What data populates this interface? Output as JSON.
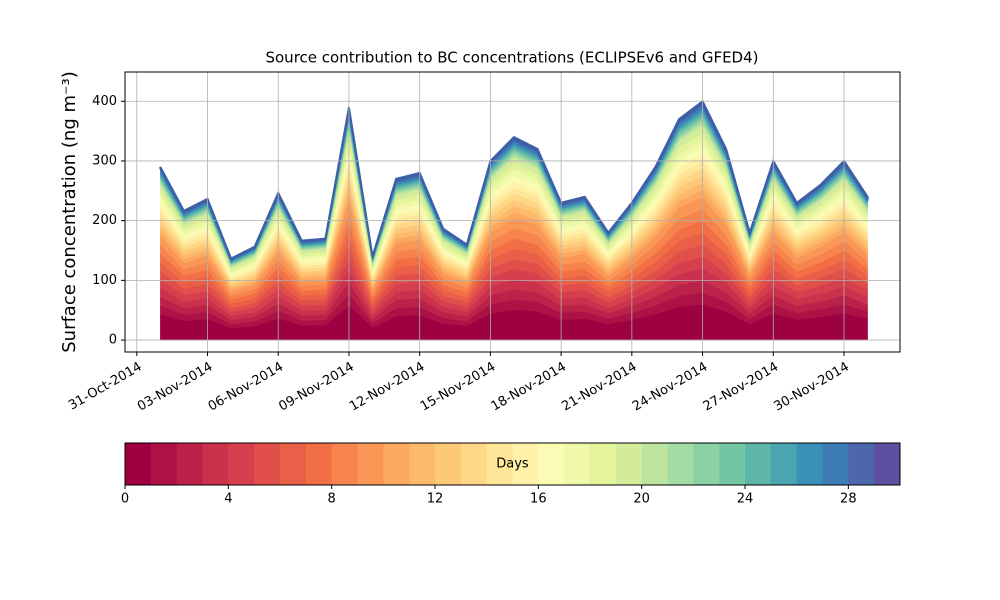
{
  "chart_data": {
    "type": "stacked_area",
    "title": "Source contribution to BC concentrations (ECLIPSEv6 and GFED4)",
    "ylabel": "Surface concentration (ng m⁻³)",
    "x": [
      "2014-11-01",
      "2014-11-02",
      "2014-11-03",
      "2014-11-04",
      "2014-11-05",
      "2014-11-06",
      "2014-11-07",
      "2014-11-08",
      "2014-11-09",
      "2014-11-10",
      "2014-11-11",
      "2014-11-12",
      "2014-11-13",
      "2014-11-14",
      "2014-11-15",
      "2014-11-16",
      "2014-11-17",
      "2014-11-18",
      "2014-11-19",
      "2014-11-20",
      "2014-11-21",
      "2014-11-22",
      "2014-11-23",
      "2014-11-24",
      "2014-11-25",
      "2014-11-26",
      "2014-11-27",
      "2014-11-28",
      "2014-11-29",
      "2014-11-30",
      "2014-12-01"
    ],
    "xlim": [
      "2014-10-30T12:00Z",
      "2014-12-02T09:00Z"
    ],
    "xticks": [
      {
        "value": "2014-10-31",
        "label": "31-Oct-2014"
      },
      {
        "value": "2014-11-03",
        "label": "03-Nov-2014"
      },
      {
        "value": "2014-11-06",
        "label": "06-Nov-2014"
      },
      {
        "value": "2014-11-09",
        "label": "09-Nov-2014"
      },
      {
        "value": "2014-11-12",
        "label": "12-Nov-2014"
      },
      {
        "value": "2014-11-15",
        "label": "15-Nov-2014"
      },
      {
        "value": "2014-11-18",
        "label": "18-Nov-2014"
      },
      {
        "value": "2014-11-21",
        "label": "21-Nov-2014"
      },
      {
        "value": "2014-11-24",
        "label": "24-Nov-2014"
      },
      {
        "value": "2014-11-27",
        "label": "27-Nov-2014"
      },
      {
        "value": "2014-11-30",
        "label": "30-Nov-2014"
      }
    ],
    "ylim": [
      -20,
      449
    ],
    "yticks": [
      0,
      100,
      200,
      300,
      400
    ],
    "grid": true,
    "colorbar": {
      "label": "Days",
      "lim": [
        0,
        30
      ],
      "ticks": [
        0,
        4,
        8,
        12,
        16,
        20,
        24,
        28
      ]
    },
    "series": [
      {
        "color": "#9e0142",
        "values": [
          43.5,
          32.3,
          35.3,
          20.3,
          23.3,
          36.8,
          24.8,
          25.5,
          58.5,
          21,
          40.5,
          42,
          27.8,
          24,
          45,
          51,
          48,
          34.5,
          36,
          27,
          34.5,
          43.5,
          55.5,
          60,
          48,
          27,
          45,
          34.5,
          39,
          45,
          36
        ]
      },
      {
        "color": "#ac1245",
        "values": [
          14.5,
          10.8,
          11.8,
          6.8,
          7.8,
          12.3,
          8.3,
          8.5,
          19.5,
          7,
          13.5,
          14,
          9.3,
          8,
          15,
          17,
          16,
          11.5,
          12,
          9,
          11.5,
          14.5,
          18.5,
          20,
          16,
          9,
          15,
          11.5,
          13,
          15,
          12
        ]
      },
      {
        "color": "#bb2249",
        "values": [
          14.5,
          10.8,
          11.8,
          6.8,
          7.8,
          12.3,
          8.3,
          8.5,
          19.5,
          7,
          13.5,
          14,
          9.3,
          8,
          15,
          17,
          16,
          11.5,
          12,
          9,
          11.5,
          14.5,
          18.5,
          20,
          16,
          9,
          15,
          11.5,
          13,
          15,
          12
        ]
      },
      {
        "color": "#c9314c",
        "values": [
          14.5,
          10.8,
          11.8,
          6.8,
          7.8,
          12.3,
          8.3,
          8.5,
          19.5,
          7,
          13.5,
          14,
          9.3,
          8,
          15,
          17,
          16,
          11.5,
          12,
          9,
          11.5,
          14.5,
          18.5,
          20,
          16,
          9,
          15,
          11.5,
          13,
          15,
          12
        ]
      },
      {
        "color": "#d6404e",
        "values": [
          14.5,
          10.8,
          11.8,
          6.8,
          7.8,
          12.3,
          8.3,
          8.5,
          19.5,
          7,
          13.5,
          14,
          9.3,
          8,
          15,
          17,
          16,
          11.5,
          12,
          9,
          11.5,
          14.5,
          18.5,
          20,
          16,
          9,
          15,
          11.5,
          13,
          15,
          12
        ]
      },
      {
        "color": "#e04f4a",
        "values": [
          14.5,
          10.8,
          11.8,
          6.8,
          7.8,
          12.3,
          8.3,
          8.5,
          19.5,
          7,
          13.5,
          14,
          9.3,
          8,
          15,
          17,
          16,
          11.5,
          12,
          9,
          11.5,
          14.5,
          18.5,
          20,
          16,
          9,
          15,
          11.5,
          13,
          15,
          12
        ]
      },
      {
        "color": "#e95f47",
        "values": [
          14.5,
          10.8,
          11.8,
          6.8,
          7.8,
          12.3,
          8.3,
          8.5,
          19.5,
          7,
          13.5,
          14,
          9.3,
          8,
          15,
          17,
          16,
          11.5,
          12,
          9,
          11.5,
          14.5,
          18.5,
          20,
          16,
          9,
          15,
          11.5,
          13,
          15,
          12
        ]
      },
      {
        "color": "#f26f45",
        "values": [
          14.5,
          10.8,
          11.8,
          6.8,
          7.8,
          12.3,
          8.3,
          8.5,
          19.5,
          7,
          13.5,
          14,
          9.3,
          8,
          15,
          17,
          16,
          11.5,
          12,
          9,
          11.5,
          14.5,
          18.5,
          20,
          16,
          9,
          15,
          11.5,
          13,
          15,
          12
        ]
      },
      {
        "color": "#f7834d",
        "values": [
          14.5,
          10.8,
          11.8,
          6.8,
          7.8,
          12.3,
          8.3,
          8.5,
          19.5,
          7,
          13.5,
          14,
          9.3,
          8,
          15,
          17,
          16,
          11.5,
          12,
          9,
          11.5,
          14.5,
          18.5,
          20,
          16,
          9,
          15,
          11.5,
          13,
          15,
          12
        ]
      },
      {
        "color": "#fa9656",
        "values": [
          14.5,
          10.8,
          11.8,
          6.8,
          7.8,
          12.3,
          8.3,
          8.5,
          19.5,
          7,
          13.5,
          14,
          9.3,
          8,
          15,
          17,
          16,
          11.5,
          12,
          9,
          11.5,
          14.5,
          18.5,
          20,
          16,
          9,
          15,
          11.5,
          13,
          15,
          12
        ]
      },
      {
        "color": "#fca85e",
        "values": [
          8.7,
          6.5,
          7.1,
          4.1,
          4.7,
          7.4,
          5,
          5.1,
          11.7,
          4.2,
          8.1,
          8.4,
          5.6,
          4.8,
          9,
          10.2,
          9.6,
          6.9,
          7.2,
          5.4,
          6.9,
          8.7,
          11.1,
          12,
          9.6,
          5.4,
          9,
          6.9,
          7.8,
          9,
          7.2
        ]
      },
      {
        "color": "#fdba6b",
        "values": [
          8.7,
          6.5,
          7.1,
          4.1,
          4.7,
          7.4,
          5,
          5.1,
          11.7,
          4.2,
          8.1,
          8.4,
          5.6,
          4.8,
          9,
          10.2,
          9.6,
          6.9,
          7.2,
          5.4,
          6.9,
          8.7,
          11.1,
          12,
          9.6,
          5.4,
          9,
          6.9,
          7.8,
          9,
          7.2
        ]
      },
      {
        "color": "#fdc979",
        "values": [
          8.7,
          6.5,
          7.1,
          4.1,
          4.7,
          7.4,
          5,
          5.1,
          11.7,
          4.2,
          8.1,
          8.4,
          5.6,
          4.8,
          9,
          10.2,
          9.6,
          6.9,
          7.2,
          5.4,
          6.9,
          8.7,
          11.1,
          12,
          9.6,
          5.4,
          9,
          6.9,
          7.8,
          9,
          7.2
        ]
      },
      {
        "color": "#fed787",
        "values": [
          8.7,
          6.5,
          7.1,
          4.1,
          4.7,
          7.4,
          5,
          5.1,
          11.7,
          4.2,
          8.1,
          8.4,
          5.6,
          4.8,
          9,
          10.2,
          9.6,
          6.9,
          7.2,
          5.4,
          6.9,
          8.7,
          11.1,
          12,
          9.6,
          5.4,
          9,
          6.9,
          7.8,
          9,
          7.2
        ]
      },
      {
        "color": "#fee597",
        "values": [
          8.7,
          6.5,
          7.1,
          4.1,
          4.7,
          7.4,
          5,
          5.1,
          11.7,
          4.2,
          8.1,
          8.4,
          5.6,
          4.8,
          9,
          10.2,
          9.6,
          6.9,
          7.2,
          5.4,
          6.9,
          8.7,
          11.1,
          12,
          9.6,
          5.4,
          9,
          6.9,
          7.8,
          9,
          7.2
        ]
      },
      {
        "color": "#fff1a8",
        "values": [
          8.7,
          6.5,
          7.1,
          4.1,
          4.7,
          7.4,
          5,
          5.1,
          11.7,
          4.2,
          8.1,
          8.4,
          5.6,
          4.8,
          9,
          10.2,
          9.6,
          6.9,
          7.2,
          5.4,
          6.9,
          8.7,
          11.1,
          12,
          9.6,
          5.4,
          9,
          6.9,
          7.8,
          9,
          7.2
        ]
      },
      {
        "color": "#fafcb5",
        "values": [
          8.7,
          6.5,
          7.1,
          4.1,
          4.7,
          7.4,
          5,
          5.1,
          11.7,
          4.2,
          8.1,
          8.4,
          5.6,
          4.8,
          9,
          10.2,
          9.6,
          6.9,
          7.2,
          5.4,
          6.9,
          8.7,
          11.1,
          12,
          9.6,
          5.4,
          9,
          6.9,
          7.8,
          9,
          7.2
        ]
      },
      {
        "color": "#f0f9a7",
        "values": [
          8.7,
          6.5,
          7.1,
          4.1,
          4.7,
          7.4,
          5,
          5.1,
          11.7,
          4.2,
          8.1,
          8.4,
          5.6,
          4.8,
          9,
          10.2,
          9.6,
          6.9,
          7.2,
          5.4,
          6.9,
          8.7,
          11.1,
          12,
          9.6,
          5.4,
          9,
          6.9,
          7.8,
          9,
          7.2
        ]
      },
      {
        "color": "#e3f49a",
        "values": [
          8.7,
          6.5,
          7.1,
          4.1,
          4.7,
          7.4,
          5,
          5.1,
          11.7,
          4.2,
          8.1,
          8.4,
          5.6,
          4.8,
          9,
          10.2,
          9.6,
          6.9,
          7.2,
          5.4,
          6.9,
          8.7,
          11.1,
          12,
          9.6,
          5.4,
          9,
          6.9,
          7.8,
          9,
          7.2
        ]
      },
      {
        "color": "#d2ec9c",
        "values": [
          8.7,
          6.5,
          7.1,
          4.1,
          4.7,
          7.4,
          5,
          5.1,
          11.7,
          4.2,
          8.1,
          8.4,
          5.6,
          4.8,
          9,
          10.2,
          9.6,
          6.9,
          7.2,
          5.4,
          6.9,
          8.7,
          11.1,
          12,
          9.6,
          5.4,
          9,
          6.9,
          7.8,
          9,
          7.2
        ]
      },
      {
        "color": "#bde49f",
        "values": [
          2.9,
          2.2,
          2.4,
          1.4,
          1.6,
          2.5,
          1.7,
          1.7,
          3.9,
          1.4,
          2.7,
          2.8,
          1.9,
          1.6,
          3,
          3.4,
          3.2,
          2.3,
          2.4,
          1.8,
          2.3,
          2.9,
          3.7,
          4,
          3.2,
          1.8,
          3,
          2.3,
          2.6,
          3,
          2.4
        ]
      },
      {
        "color": "#a5dba4",
        "values": [
          2.9,
          2.2,
          2.4,
          1.4,
          1.6,
          2.5,
          1.7,
          1.7,
          3.9,
          1.4,
          2.7,
          2.8,
          1.9,
          1.6,
          3,
          3.4,
          3.2,
          2.3,
          2.4,
          1.8,
          2.3,
          2.9,
          3.7,
          4,
          3.2,
          1.8,
          3,
          2.3,
          2.6,
          3,
          2.4
        ]
      },
      {
        "color": "#8cd1a4",
        "values": [
          2.9,
          2.2,
          2.4,
          1.4,
          1.6,
          2.5,
          1.7,
          1.7,
          3.9,
          1.4,
          2.7,
          2.8,
          1.9,
          1.6,
          3,
          3.4,
          3.2,
          2.3,
          2.4,
          1.8,
          2.3,
          2.9,
          3.7,
          4,
          3.2,
          1.8,
          3,
          2.3,
          2.6,
          3,
          2.4
        ]
      },
      {
        "color": "#73c6a4",
        "values": [
          2.9,
          2.2,
          2.4,
          1.4,
          1.6,
          2.5,
          1.7,
          1.7,
          3.9,
          1.4,
          2.7,
          2.8,
          1.9,
          1.6,
          3,
          3.4,
          3.2,
          2.3,
          2.4,
          1.8,
          2.3,
          2.9,
          3.7,
          4,
          3.2,
          1.8,
          3,
          2.3,
          2.6,
          3,
          2.4
        ]
      },
      {
        "color": "#5eb6a9",
        "values": [
          2.9,
          2.2,
          2.4,
          1.4,
          1.6,
          2.5,
          1.7,
          1.7,
          3.9,
          1.4,
          2.7,
          2.8,
          1.9,
          1.6,
          3,
          3.4,
          3.2,
          2.3,
          2.4,
          1.8,
          2.3,
          2.9,
          3.7,
          4,
          3.2,
          1.8,
          3,
          2.3,
          2.6,
          3,
          2.4
        ]
      },
      {
        "color": "#4aa4b1",
        "values": [
          2.9,
          2.2,
          2.4,
          1.4,
          1.6,
          2.5,
          1.7,
          1.7,
          3.9,
          1.4,
          2.7,
          2.8,
          1.9,
          1.6,
          3,
          3.4,
          3.2,
          2.3,
          2.4,
          1.8,
          2.3,
          2.9,
          3.7,
          4,
          3.2,
          1.8,
          3,
          2.3,
          2.6,
          3,
          2.4
        ]
      },
      {
        "color": "#3990b8",
        "values": [
          2.9,
          2.2,
          2.4,
          1.4,
          1.6,
          2.5,
          1.7,
          1.7,
          3.9,
          1.4,
          2.7,
          2.8,
          1.9,
          1.6,
          3,
          3.4,
          3.2,
          2.3,
          2.4,
          1.8,
          2.3,
          2.9,
          3.7,
          4,
          3.2,
          1.8,
          3,
          2.3,
          2.6,
          3,
          2.4
        ]
      },
      {
        "color": "#3d7cb7",
        "values": [
          2.9,
          2.2,
          2.4,
          1.4,
          1.6,
          2.5,
          1.7,
          1.7,
          3.9,
          1.4,
          2.7,
          2.8,
          1.9,
          1.6,
          3,
          3.4,
          3.2,
          2.3,
          2.4,
          1.8,
          2.3,
          2.9,
          3.7,
          4,
          3.2,
          1.8,
          3,
          2.3,
          2.6,
          3,
          2.4
        ]
      },
      {
        "color": "#4d67ae",
        "values": [
          2.9,
          2.2,
          2.4,
          1.4,
          1.6,
          2.5,
          1.7,
          1.7,
          3.9,
          1.4,
          2.7,
          2.8,
          1.9,
          1.6,
          3,
          3.4,
          3.2,
          2.3,
          2.4,
          1.8,
          2.3,
          2.9,
          3.7,
          4,
          3.2,
          1.8,
          3,
          2.3,
          2.6,
          3,
          2.4
        ]
      },
      {
        "color": "#5e4fa2",
        "values": [
          2.9,
          2.2,
          2.4,
          1.4,
          1.6,
          2.5,
          1.7,
          1.7,
          3.9,
          1.4,
          2.7,
          2.8,
          1.9,
          1.6,
          3,
          3.4,
          3.2,
          2.3,
          2.4,
          1.8,
          2.3,
          2.9,
          3.7,
          4,
          3.2,
          1.8,
          3,
          2.3,
          2.6,
          3,
          2.4
        ]
      }
    ]
  }
}
